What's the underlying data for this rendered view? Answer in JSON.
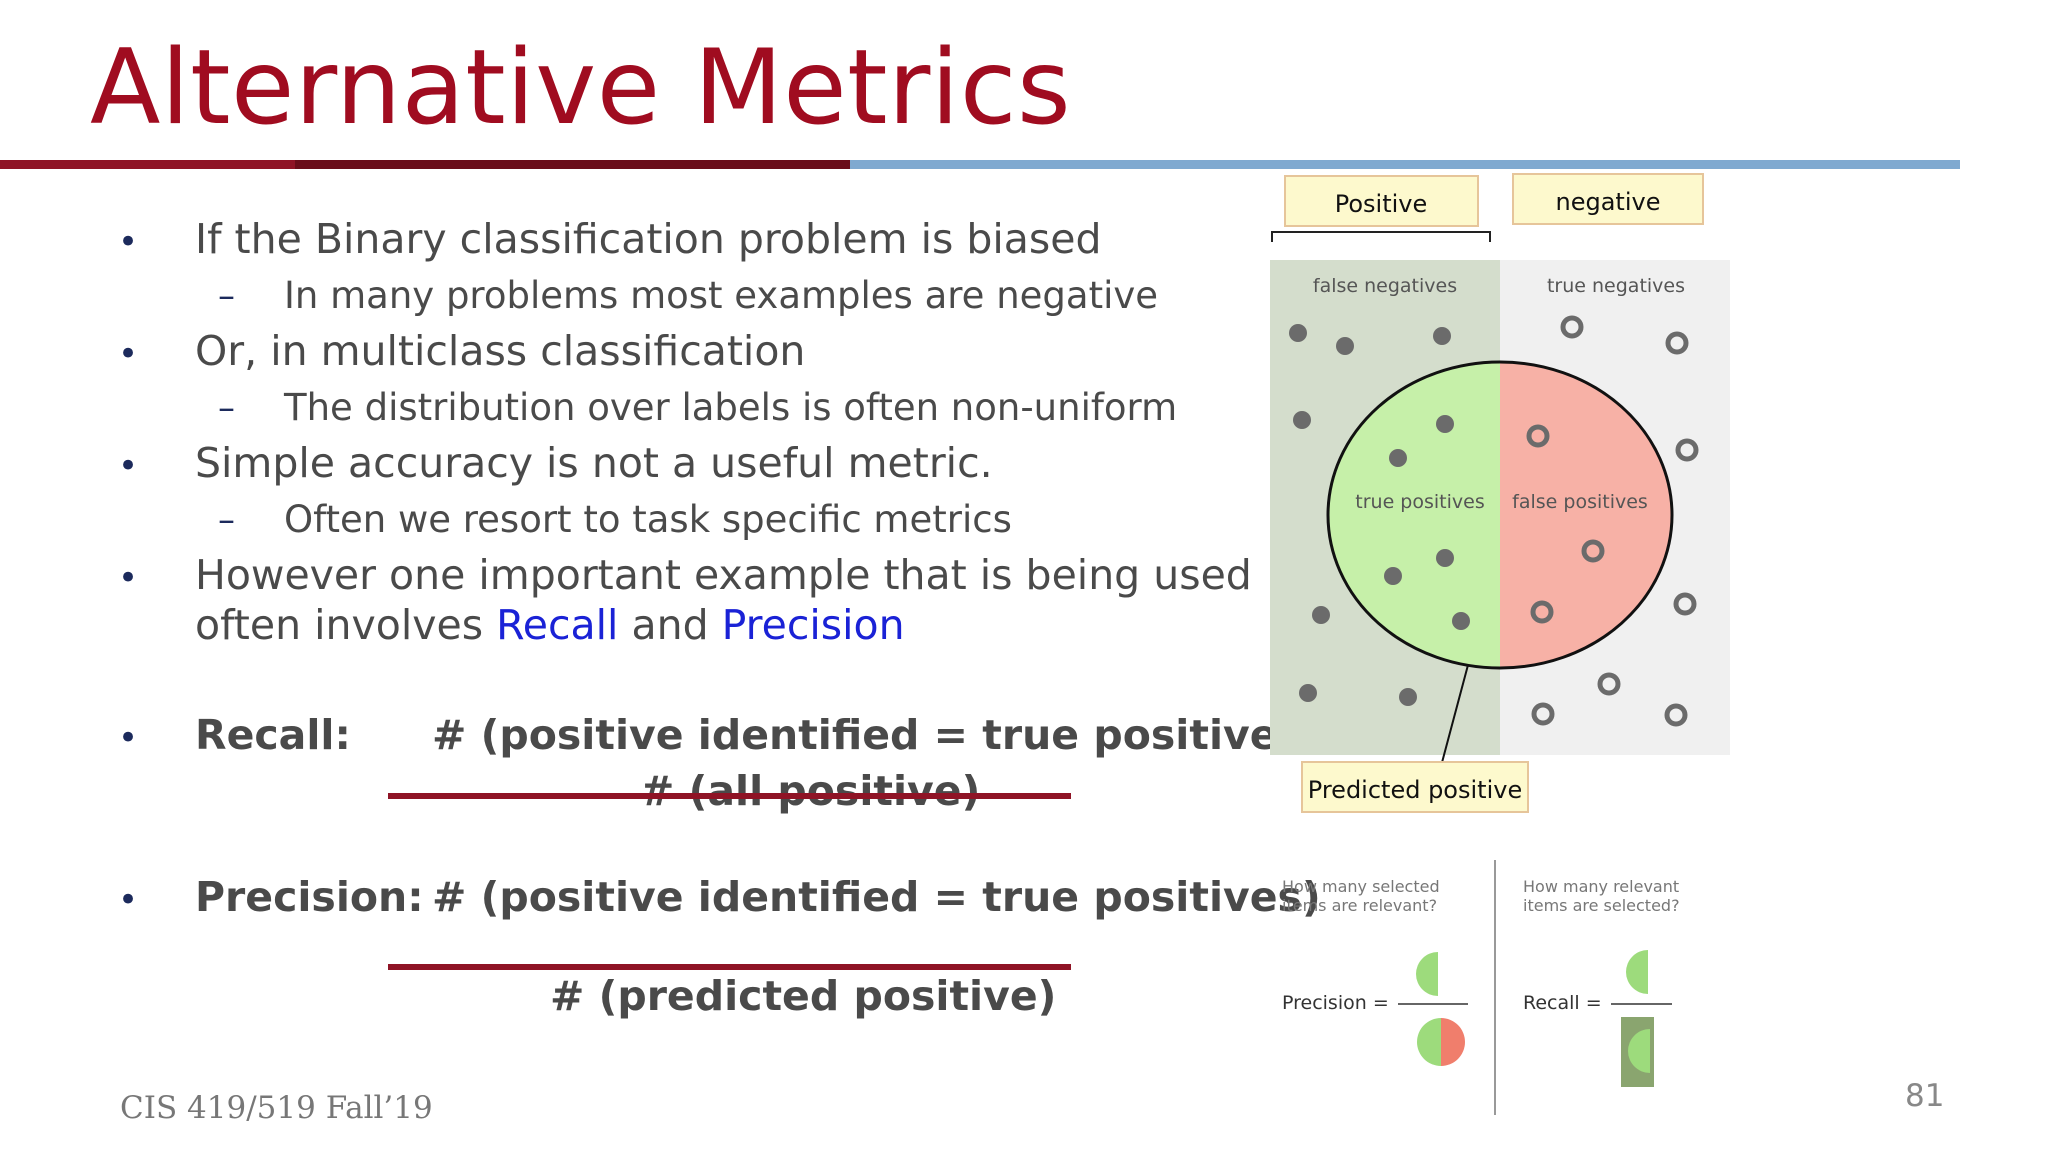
{
  "slide": {
    "title": "Alternative Metrics",
    "footer": "CIS 419/519 Fall’19",
    "page_number": "81"
  },
  "bullets": [
    {
      "text": "If the Binary classification problem is biased",
      "sub": "In many problems most examples are negative"
    },
    {
      "text": "Or, in multiclass classification",
      "sub": "The distribution over labels is often non-uniform"
    },
    {
      "text": "Simple accuracy is not a useful metric.",
      "sub": "Often we resort to task specific metrics"
    },
    {
      "line1": "However one important example that is being used",
      "line2_pre": "often involves ",
      "recall_word": "Recall",
      "and_word": " and ",
      "precision_word": "Precision"
    }
  ],
  "recall": {
    "label": "Recall:",
    "numerator": "# (positive identified = true positives)",
    "denominator": "# (all positive)"
  },
  "precision": {
    "label": "Precision:",
    "numerator": "# (positive identified = true positives)",
    "denominator": "# (predicted positive)"
  },
  "diagram": {
    "positive_label": "Positive",
    "negative_label": "negative",
    "false_negatives": "false negatives",
    "true_negatives": "true negatives",
    "true_positives": "true positives",
    "false_positives": "false positives",
    "predicted_positive": "Predicted positive",
    "q_precision_1": "How many selected",
    "q_precision_2": "items are relevant?",
    "q_recall_1": "How many relevant",
    "q_recall_2": "items are selected?",
    "precision_eq": "Precision =",
    "recall_eq": "Recall ="
  },
  "colors": {
    "title": "#a00c20",
    "link_blue": "#1a22d6",
    "true_positive_fill": "#c6f0a9",
    "false_positive_fill": "#f7b1a6",
    "relevant_region": "#d4ddcc",
    "irrelevant_region": "#f0f0f0",
    "label_box": "#fdf9cd"
  }
}
